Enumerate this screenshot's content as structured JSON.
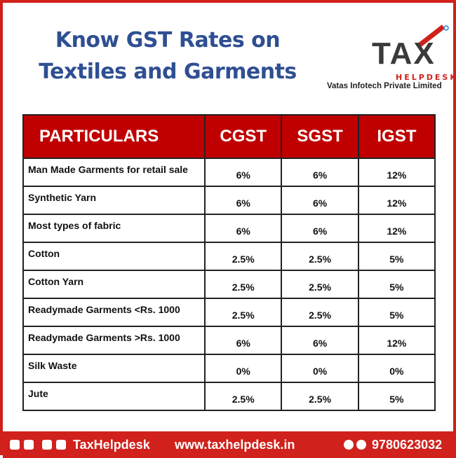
{
  "header": {
    "title_lines": [
      "Know GST Rates on",
      "Textiles and Garments"
    ]
  },
  "logo": {
    "brand": "TAX",
    "sub": "HELPDESK",
    "company": "Vatas Infotech Private Limited"
  },
  "table": {
    "columns": [
      "PARTICULARS",
      "CGST",
      "SGST",
      "IGST"
    ],
    "rows": [
      [
        "Man Made Garments for retail sale",
        "6%",
        "6%",
        "12%"
      ],
      [
        "Synthetic Yarn",
        "6%",
        "6%",
        "12%"
      ],
      [
        "Most types of fabric",
        "6%",
        "6%",
        "12%"
      ],
      [
        "Cotton",
        "2.5%",
        "2.5%",
        "5%"
      ],
      [
        "Cotton Yarn",
        "2.5%",
        "2.5%",
        "5%"
      ],
      [
        "Readymade Garments <Rs. 1000",
        "2.5%",
        "2.5%",
        "5%"
      ],
      [
        "Readymade Garments >Rs. 1000",
        "6%",
        "6%",
        "12%"
      ],
      [
        "Silk Waste",
        "0%",
        "0%",
        "0%"
      ],
      [
        "Jute",
        "2.5%",
        "2.5%",
        "5%"
      ]
    ]
  },
  "footer": {
    "social_handle": "TaxHelpdesk",
    "website": "www.taxhelpdesk.in",
    "phone": "9780623032"
  }
}
